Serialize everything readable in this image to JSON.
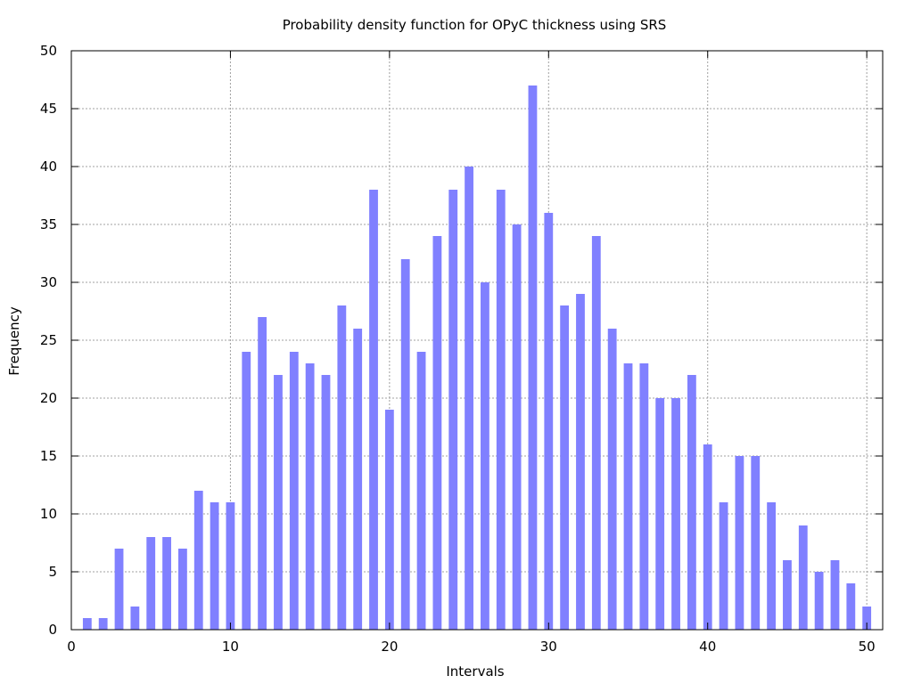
{
  "chart_data": {
    "type": "bar",
    "title": "Probability density function for OPyC thickness using SRS",
    "xlabel": "Intervals",
    "ylabel": "Frequency",
    "xlim": [
      0,
      51
    ],
    "ylim": [
      0,
      50
    ],
    "x_ticks": [
      0,
      10,
      20,
      30,
      40,
      50
    ],
    "y_ticks": [
      0,
      5,
      10,
      15,
      20,
      25,
      30,
      35,
      40,
      45,
      50
    ],
    "grid": true,
    "bar_color": "#8080ff",
    "x": [
      1,
      2,
      3,
      4,
      5,
      6,
      7,
      8,
      9,
      10,
      11,
      12,
      13,
      14,
      15,
      16,
      17,
      18,
      19,
      20,
      21,
      22,
      23,
      24,
      25,
      26,
      27,
      28,
      29,
      30,
      31,
      32,
      33,
      34,
      35,
      36,
      37,
      38,
      39,
      40,
      41,
      42,
      43,
      44,
      45,
      46,
      47,
      48,
      49,
      50
    ],
    "values": [
      1,
      1,
      7,
      2,
      8,
      8,
      7,
      12,
      11,
      11,
      24,
      27,
      22,
      24,
      23,
      22,
      28,
      26,
      38,
      19,
      32,
      24,
      34,
      38,
      40,
      30,
      38,
      35,
      47,
      36,
      28,
      29,
      34,
      26,
      23,
      23,
      20,
      20,
      22,
      16,
      11,
      15,
      15,
      11,
      6,
      9,
      5,
      6,
      4,
      2
    ]
  }
}
